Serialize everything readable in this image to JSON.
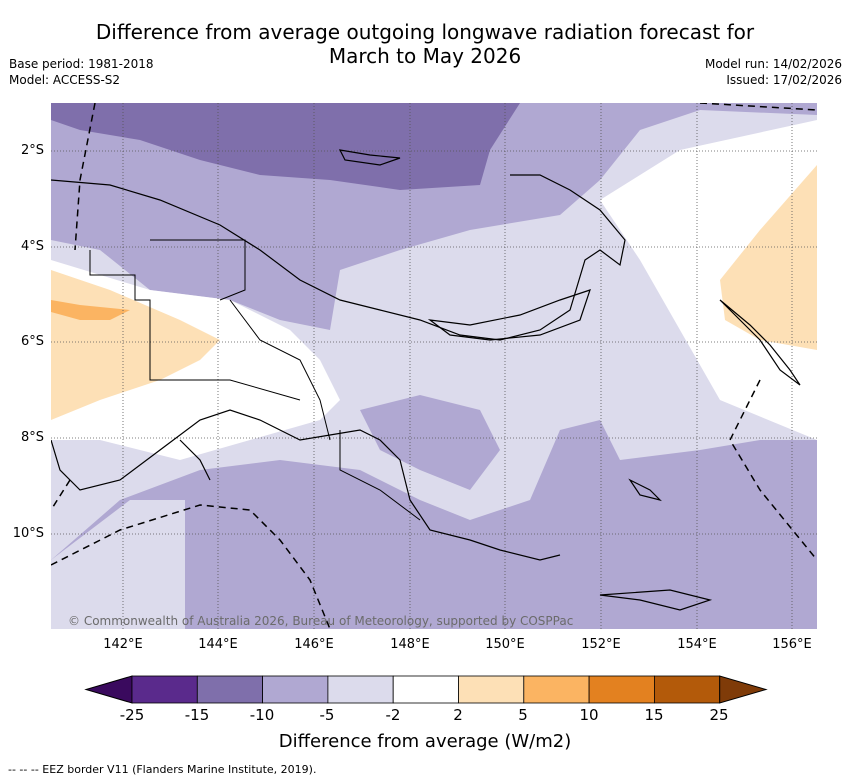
{
  "header": {
    "title_line1": "Difference from average outgoing longwave radiation forecast for",
    "title_line2": "March to May 2026",
    "base_period": "Base period: 1981-2018",
    "model": "Model: ACCESS-S2",
    "model_run": "Model run: 14/02/2026",
    "issued": "Issued: 17/02/2026"
  },
  "map": {
    "lat_labels": [
      "2°S",
      "4°S",
      "6°S",
      "8°S",
      "10°S"
    ],
    "lon_labels": [
      "142°E",
      "144°E",
      "146°E",
      "148°E",
      "150°E",
      "152°E",
      "154°E",
      "156°E"
    ],
    "copyright": "© Commonwealth of Australia 2026, Bureau of Meteorology, supported by COSPPac"
  },
  "colorbar": {
    "ticks": [
      "-25",
      "-15",
      "-10",
      "-5",
      "-2",
      "2",
      "5",
      "10",
      "15",
      "25"
    ],
    "colors": [
      "#5a2a8c",
      "#7f6fab",
      "#b0a8d2",
      "#dcdbec",
      "#ffffff",
      "#fde0b6",
      "#fbb462",
      "#e38120",
      "#b35a0a"
    ],
    "under_color": "#3a0a5e",
    "over_color": "#7f3b08",
    "label": "Difference from average (W/m2)"
  },
  "footer": {
    "legend": "--  --  -- EEZ border V11 (Flanders Marine Institute, 2019)."
  }
}
